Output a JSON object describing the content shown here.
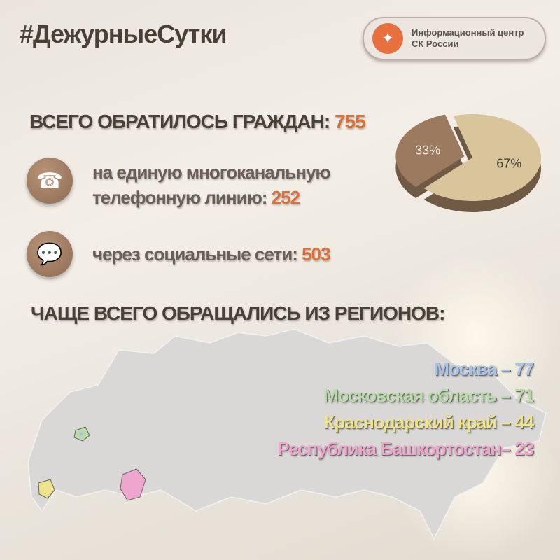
{
  "header": {
    "hashtag": "#ДежурныеСутки",
    "logo_line1": "Информационный центр",
    "logo_line2": "СК России"
  },
  "totals": {
    "label": "ВСЕГО ОБРАТИЛОСЬ ГРАЖДАН:",
    "value": "755"
  },
  "channels": [
    {
      "icon": "phone-icon",
      "label_line1": "на единую многоканальную",
      "label_line2": "телефонную линию:",
      "value": "252"
    },
    {
      "icon": "chat-bubble-icon",
      "label": "через социальные сети:",
      "value": "503"
    }
  ],
  "chart_data": {
    "type": "pie",
    "slices": [
      {
        "label": "33%",
        "value": 33,
        "color": "#9c7a60"
      },
      {
        "label": "67%",
        "value": 67,
        "color": "#d9c59c"
      }
    ]
  },
  "regions": {
    "title": "ЧАЩЕ ВСЕГО ОБРАЩАЛИСЬ ИЗ РЕГИОНОВ:",
    "items": [
      {
        "label": "Москва – 77",
        "color": "#a9c3e8"
      },
      {
        "label": "Московская область – 71",
        "color": "#b9dba7"
      },
      {
        "label": "Краснодарский край – 44",
        "color": "#eee38a"
      },
      {
        "label": "Республика Башкортостан– 23",
        "color": "#eea6cf"
      }
    ]
  },
  "colors": {
    "accent": "#d8703a",
    "text": "#4a4036"
  }
}
